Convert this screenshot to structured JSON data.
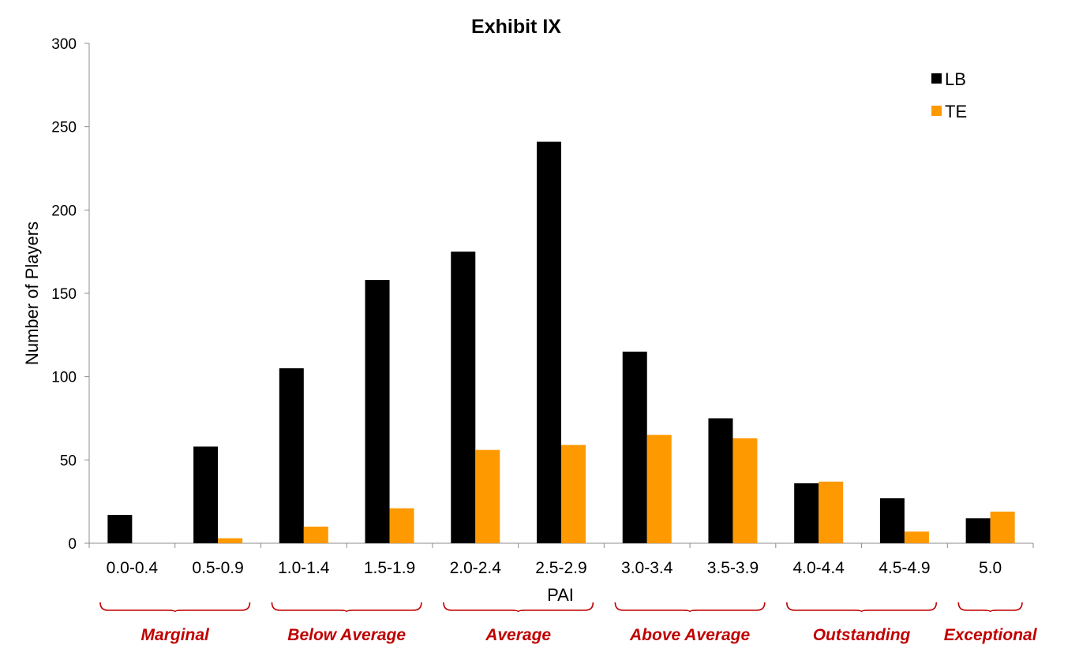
{
  "chart_data": {
    "type": "bar",
    "title": "Exhibit IX",
    "xlabel": "PAI",
    "ylabel": "Number of Players",
    "ylim": [
      0,
      300
    ],
    "yticks": [
      "0",
      "50",
      "100",
      "150",
      "200",
      "250",
      "300"
    ],
    "categories": [
      "0.0-0.4",
      "0.5-0.9",
      "1.0-1.4",
      "1.5-1.9",
      "2.0-2.4",
      "2.5-2.9",
      "3.0-3.4",
      "3.5-3.9",
      "4.0-4.4",
      "4.5-4.9",
      "5.0"
    ],
    "series": [
      {
        "name": "LB",
        "color": "#000000",
        "values": [
          17,
          58,
          105,
          158,
          175,
          241,
          115,
          75,
          36,
          27,
          15
        ]
      },
      {
        "name": "TE",
        "color": "#FF9900",
        "values": [
          0,
          3,
          10,
          21,
          56,
          59,
          65,
          63,
          37,
          7,
          19
        ]
      }
    ],
    "legend_position": "top-right",
    "grid": false,
    "groups": [
      {
        "label": "Marginal",
        "from": 0,
        "to": 1
      },
      {
        "label": "Below Average",
        "from": 2,
        "to": 3
      },
      {
        "label": "Average",
        "from": 4,
        "to": 5
      },
      {
        "label": "Above Average",
        "from": 6,
        "to": 7
      },
      {
        "label": "Outstanding",
        "from": 8,
        "to": 9
      },
      {
        "label": "Exceptional",
        "from": 10,
        "to": 10
      }
    ],
    "group_color": "#C00000"
  }
}
